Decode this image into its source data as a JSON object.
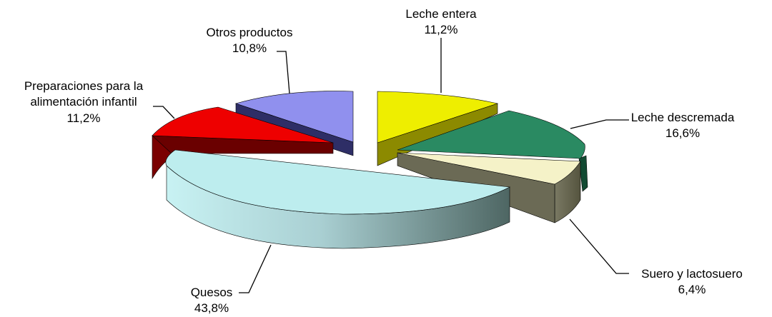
{
  "chart_data": {
    "type": "pie",
    "three_d": true,
    "title": "",
    "legend": "none",
    "slices": [
      {
        "label": "Leche entera",
        "value_label": "11,2%",
        "value": 11.2,
        "color": "#EEEE00",
        "side_color": "#8C8A00",
        "exploded": true
      },
      {
        "label": "Leche descremada",
        "value_label": "16,6%",
        "value": 16.6,
        "color": "#2A8A62",
        "side_color": "#124A32",
        "exploded": false
      },
      {
        "label": "Suero y lactosuero",
        "value_label": "6,4%",
        "value": 6.4,
        "color": "#F5F2C8",
        "side_color": "#6B6A55",
        "exploded": false
      },
      {
        "label": "Quesos",
        "value_label": "43,8%",
        "value": 43.8,
        "color": "#BDEDEE",
        "side_color": "#5F7E7C",
        "exploded": true
      },
      {
        "label": "Preparaciones para la alimentación infantil",
        "value_label": "11,2%",
        "value": 11.2,
        "color": "#EE0000",
        "side_color": "#7A0000",
        "exploded": true
      },
      {
        "label": "Otros productos",
        "value_label": "10,8%",
        "value": 10.8,
        "color": "#9090EE",
        "side_color": "#3A3A7A",
        "exploded": true
      }
    ]
  }
}
